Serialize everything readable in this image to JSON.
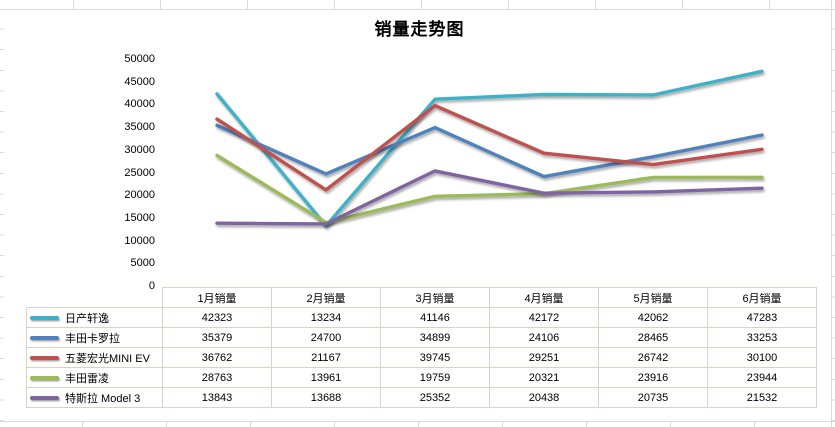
{
  "chart": {
    "title": "销量走势图",
    "y_axis_tick_labels": [
      "0",
      "5000",
      "10000",
      "15000",
      "20000",
      "25000",
      "30000",
      "35000",
      "40000",
      "45000",
      "50000"
    ]
  },
  "table": {
    "column_headers": [
      "1月销量",
      "2月销量",
      "3月销量",
      "4月销量",
      "5月销量",
      "6月销量"
    ]
  },
  "colors": {
    "sheet_gridline": "#d9d9e4",
    "table_border": "#d9d3c6",
    "series": [
      "#3EB1C8",
      "#4F81BD",
      "#C0504D",
      "#9BBB59",
      "#8064A2"
    ]
  },
  "chart_data": {
    "type": "line",
    "title": "销量走势图",
    "categories": [
      "1月销量",
      "2月销量",
      "3月销量",
      "4月销量",
      "5月销量",
      "6月销量"
    ],
    "series": [
      {
        "name": "日产轩逸",
        "color": "#3EB1C8",
        "values": [
          42323,
          13234,
          41146,
          42172,
          42062,
          47283
        ]
      },
      {
        "name": "丰田卡罗拉",
        "color": "#4F81BD",
        "values": [
          35379,
          24700,
          34899,
          24106,
          28465,
          33253
        ]
      },
      {
        "name": "五菱宏光MINI EV",
        "color": "#C0504D",
        "values": [
          36762,
          21167,
          39745,
          29251,
          26742,
          30100
        ]
      },
      {
        "name": "丰田雷凌",
        "color": "#9BBB59",
        "values": [
          28763,
          13961,
          19759,
          20321,
          23916,
          23944
        ]
      },
      {
        "name": "特斯拉 Model 3",
        "color": "#8064A2",
        "values": [
          13843,
          13688,
          25352,
          20438,
          20735,
          21532
        ]
      }
    ],
    "ylim": [
      0,
      50000
    ],
    "y_tick_step": 5000,
    "grid": false,
    "legend_position": "data-table-left",
    "xlabel": "",
    "ylabel": ""
  }
}
